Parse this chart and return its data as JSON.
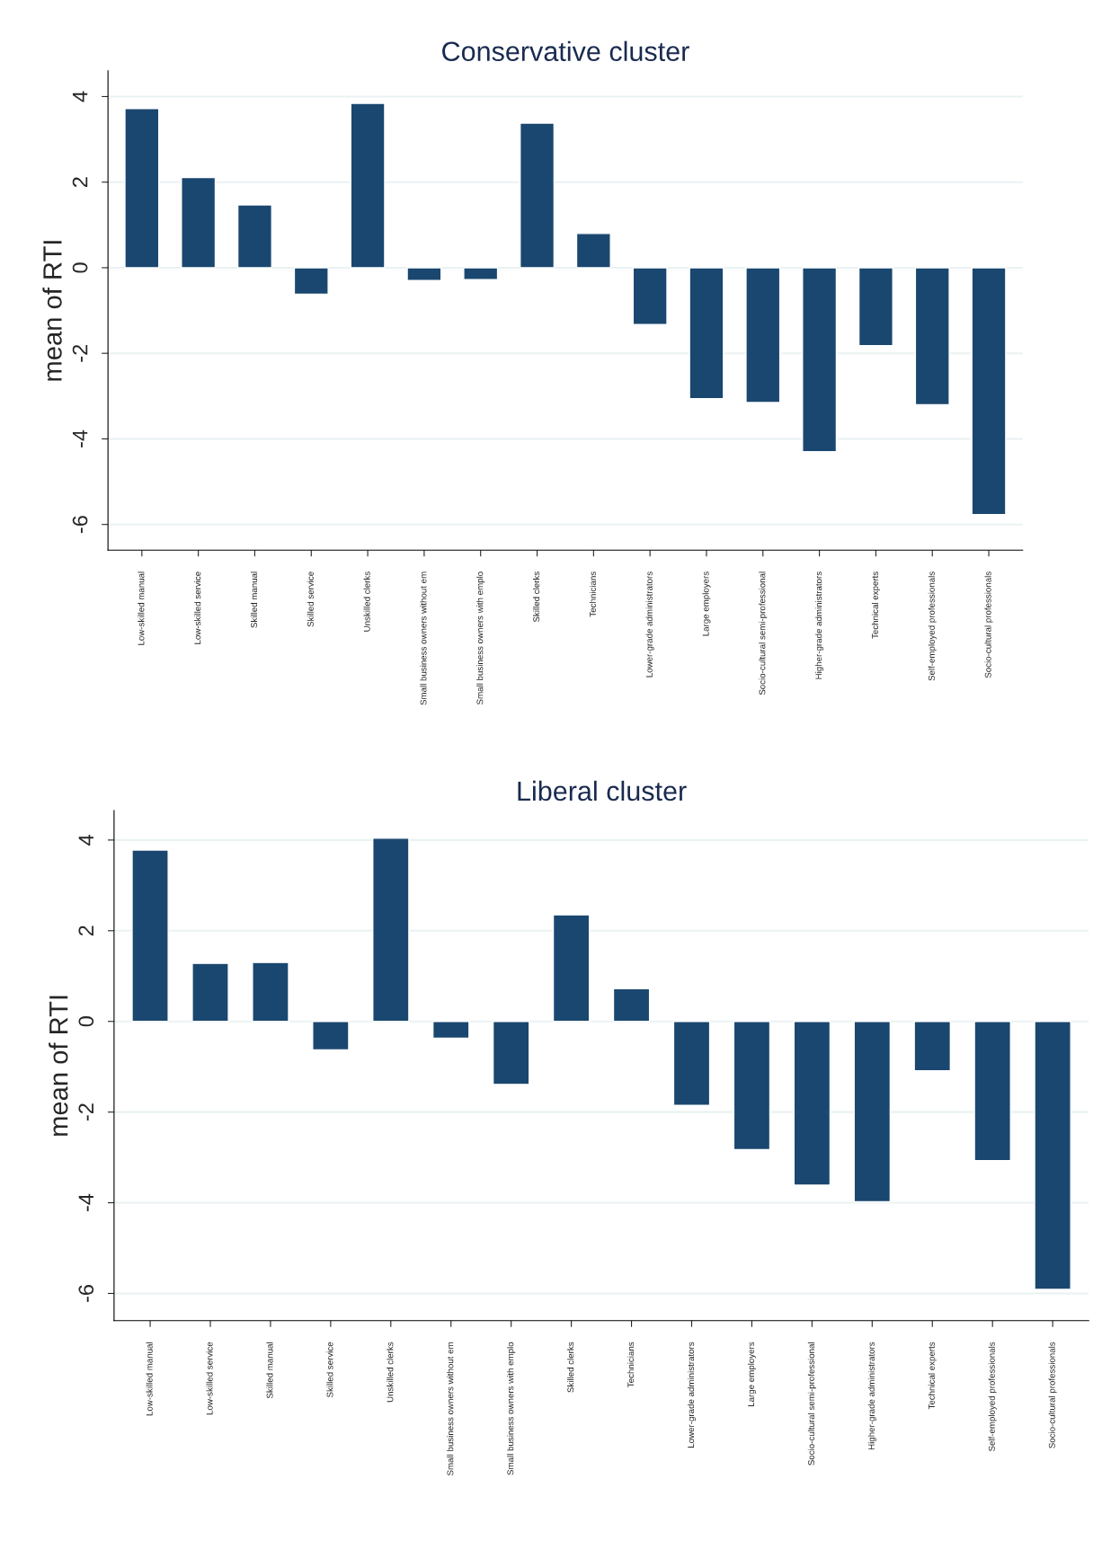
{
  "chart_data": [
    {
      "type": "bar",
      "title": "Conservative cluster",
      "ylabel": "mean of RTI",
      "categories": [
        "Low-skilled manual",
        "Low-skilled service",
        "Skilled manual",
        "Skilled service",
        "Unskilled clerks",
        "Small business owners without em",
        "Small business owners with emplo",
        "Skilled clerks",
        "Technicians",
        "Lower-grade administrators",
        "Large employers",
        "Socio-cultural semi-professional",
        "Higher-grade administrators",
        "Technical experts",
        "Self-employed professionals",
        "Socio-cultural professionals"
      ],
      "series": [
        {
          "color": "#1a476f",
          "values": [
            3.72,
            2.11,
            1.47,
            -0.62,
            3.84,
            -0.3,
            -0.28,
            3.38,
            0.8,
            -1.33,
            -3.06,
            -3.15,
            -4.3,
            -1.82,
            -3.2,
            -5.77
          ]
        }
      ],
      "ylim": [
        -6.6,
        4.6
      ],
      "yticks": [
        -6,
        -4,
        -2,
        0,
        2,
        4
      ],
      "grid": "y"
    },
    {
      "type": "bar",
      "title": "Liberal cluster",
      "ylabel": "mean of RTI",
      "categories": [
        "Low-skilled manual",
        "Low-skilled service",
        "Skilled manual",
        "Skilled service",
        "Unskilled clerks",
        "Small business owners without em",
        "Small business owners with emplo",
        "Skilled clerks",
        "Technicians",
        "Lower-grade administrators",
        "Large employers",
        "Socio-cultural semi-professional",
        "Higher-grade administrators",
        "Technical experts",
        "Self-employed professionals",
        "Socio-cultural professionals"
      ],
      "series": [
        {
          "color": "#1a476f",
          "values": [
            3.78,
            1.28,
            1.3,
            -0.63,
            4.04,
            -0.37,
            -1.39,
            2.35,
            0.72,
            -1.85,
            -2.83,
            -3.61,
            -3.98,
            -1.09,
            -3.07,
            -5.91
          ]
        }
      ],
      "ylim": [
        -6.6,
        4.65
      ],
      "yticks": [
        -6,
        -4,
        -2,
        0,
        2,
        4
      ],
      "grid": "y"
    }
  ]
}
